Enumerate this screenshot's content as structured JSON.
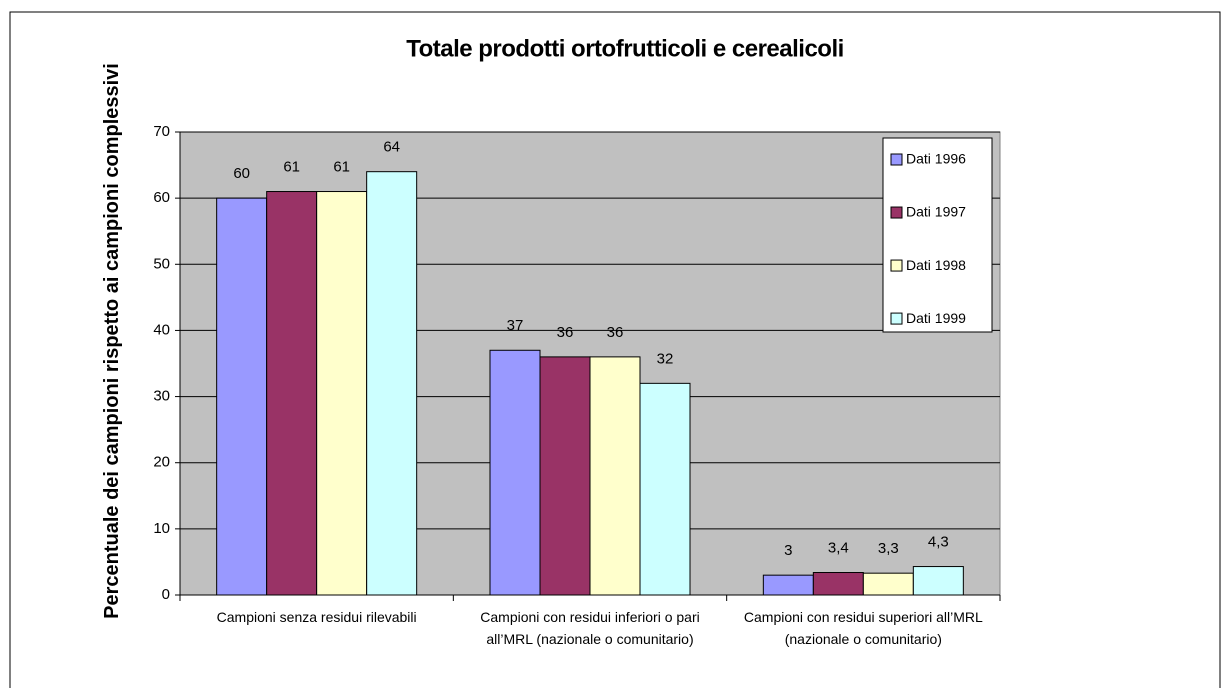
{
  "chart_data": {
    "type": "bar",
    "title": "Totale prodotti ortofrutticoli e cerealicoli",
    "y_label": "Percentuale dei campioni rispetto ai campioni complessivi",
    "categories": [
      "Campioni senza residui rilevabili",
      "Campioni con residui inferiori o pari all’MRL (nazionale o comunitario)",
      "Campioni con residui superiori all’MRL (nazionale o comunitario)"
    ],
    "series": [
      {
        "name": "Dati 1996",
        "color": "#9999ff",
        "values": [
          60,
          37,
          3
        ]
      },
      {
        "name": "Dati 1997",
        "color": "#993366",
        "values": [
          61,
          36,
          3.4
        ],
        "value_labels": [
          "61",
          "36",
          "3,4"
        ]
      },
      {
        "name": "Dati 1998",
        "color": "#ffffcc",
        "values": [
          61,
          36,
          3.3
        ],
        "value_labels": [
          "61",
          "36",
          "3,3"
        ]
      },
      {
        "name": "Dati 1999",
        "color": "#ccffff",
        "values": [
          64,
          32,
          4.3
        ],
        "value_labels": [
          "64",
          "32",
          "4,3"
        ]
      }
    ],
    "ylim": [
      0,
      70
    ],
    "yticks": [
      0,
      10,
      20,
      30,
      40,
      50,
      60,
      70
    ],
    "grid": true,
    "legend": "top-right"
  }
}
